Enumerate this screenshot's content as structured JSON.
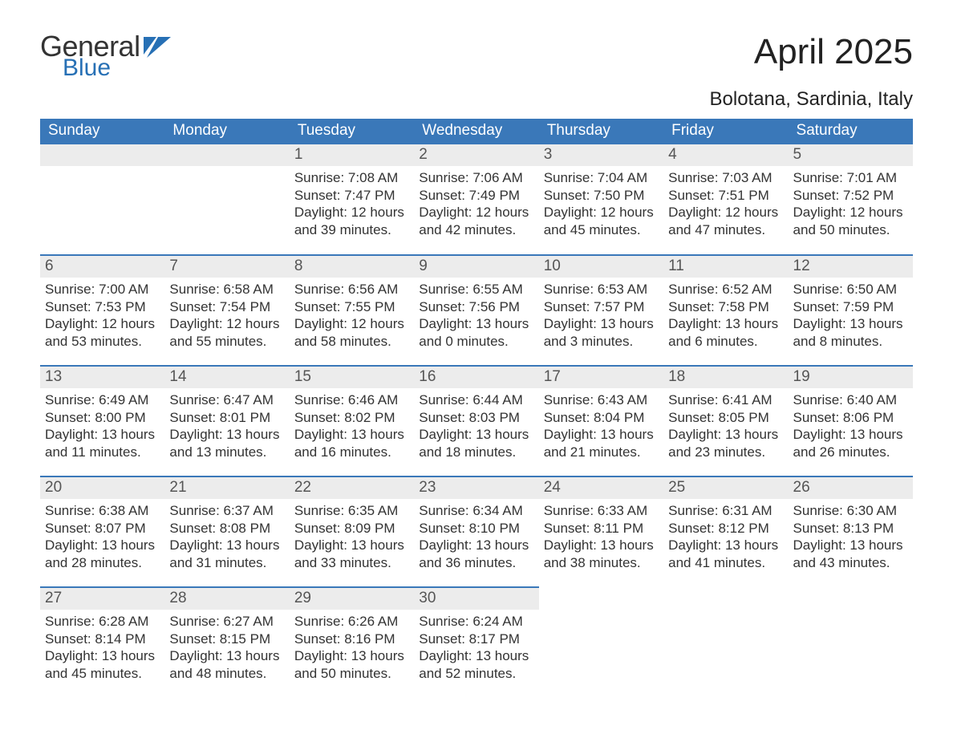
{
  "brand": {
    "word1": "General",
    "word2": "Blue"
  },
  "title": "April 2025",
  "subtitle": "Bolotana, Sardinia, Italy",
  "colors": {
    "header_bg": "#3a78b9",
    "header_text": "#ffffff",
    "daynum_bg": "#ececec",
    "rule": "#3a78b9",
    "brand_blue": "#2770b5",
    "text": "#333333"
  },
  "weekdays": [
    "Sunday",
    "Monday",
    "Tuesday",
    "Wednesday",
    "Thursday",
    "Friday",
    "Saturday"
  ],
  "weeks": [
    [
      null,
      null,
      {
        "n": "1",
        "sunrise": "Sunrise: 7:08 AM",
        "sunset": "Sunset: 7:47 PM",
        "day1": "Daylight: 12 hours",
        "day2": "and 39 minutes."
      },
      {
        "n": "2",
        "sunrise": "Sunrise: 7:06 AM",
        "sunset": "Sunset: 7:49 PM",
        "day1": "Daylight: 12 hours",
        "day2": "and 42 minutes."
      },
      {
        "n": "3",
        "sunrise": "Sunrise: 7:04 AM",
        "sunset": "Sunset: 7:50 PM",
        "day1": "Daylight: 12 hours",
        "day2": "and 45 minutes."
      },
      {
        "n": "4",
        "sunrise": "Sunrise: 7:03 AM",
        "sunset": "Sunset: 7:51 PM",
        "day1": "Daylight: 12 hours",
        "day2": "and 47 minutes."
      },
      {
        "n": "5",
        "sunrise": "Sunrise: 7:01 AM",
        "sunset": "Sunset: 7:52 PM",
        "day1": "Daylight: 12 hours",
        "day2": "and 50 minutes."
      }
    ],
    [
      {
        "n": "6",
        "sunrise": "Sunrise: 7:00 AM",
        "sunset": "Sunset: 7:53 PM",
        "day1": "Daylight: 12 hours",
        "day2": "and 53 minutes."
      },
      {
        "n": "7",
        "sunrise": "Sunrise: 6:58 AM",
        "sunset": "Sunset: 7:54 PM",
        "day1": "Daylight: 12 hours",
        "day2": "and 55 minutes."
      },
      {
        "n": "8",
        "sunrise": "Sunrise: 6:56 AM",
        "sunset": "Sunset: 7:55 PM",
        "day1": "Daylight: 12 hours",
        "day2": "and 58 minutes."
      },
      {
        "n": "9",
        "sunrise": "Sunrise: 6:55 AM",
        "sunset": "Sunset: 7:56 PM",
        "day1": "Daylight: 13 hours",
        "day2": "and 0 minutes."
      },
      {
        "n": "10",
        "sunrise": "Sunrise: 6:53 AM",
        "sunset": "Sunset: 7:57 PM",
        "day1": "Daylight: 13 hours",
        "day2": "and 3 minutes."
      },
      {
        "n": "11",
        "sunrise": "Sunrise: 6:52 AM",
        "sunset": "Sunset: 7:58 PM",
        "day1": "Daylight: 13 hours",
        "day2": "and 6 minutes."
      },
      {
        "n": "12",
        "sunrise": "Sunrise: 6:50 AM",
        "sunset": "Sunset: 7:59 PM",
        "day1": "Daylight: 13 hours",
        "day2": "and 8 minutes."
      }
    ],
    [
      {
        "n": "13",
        "sunrise": "Sunrise: 6:49 AM",
        "sunset": "Sunset: 8:00 PM",
        "day1": "Daylight: 13 hours",
        "day2": "and 11 minutes."
      },
      {
        "n": "14",
        "sunrise": "Sunrise: 6:47 AM",
        "sunset": "Sunset: 8:01 PM",
        "day1": "Daylight: 13 hours",
        "day2": "and 13 minutes."
      },
      {
        "n": "15",
        "sunrise": "Sunrise: 6:46 AM",
        "sunset": "Sunset: 8:02 PM",
        "day1": "Daylight: 13 hours",
        "day2": "and 16 minutes."
      },
      {
        "n": "16",
        "sunrise": "Sunrise: 6:44 AM",
        "sunset": "Sunset: 8:03 PM",
        "day1": "Daylight: 13 hours",
        "day2": "and 18 minutes."
      },
      {
        "n": "17",
        "sunrise": "Sunrise: 6:43 AM",
        "sunset": "Sunset: 8:04 PM",
        "day1": "Daylight: 13 hours",
        "day2": "and 21 minutes."
      },
      {
        "n": "18",
        "sunrise": "Sunrise: 6:41 AM",
        "sunset": "Sunset: 8:05 PM",
        "day1": "Daylight: 13 hours",
        "day2": "and 23 minutes."
      },
      {
        "n": "19",
        "sunrise": "Sunrise: 6:40 AM",
        "sunset": "Sunset: 8:06 PM",
        "day1": "Daylight: 13 hours",
        "day2": "and 26 minutes."
      }
    ],
    [
      {
        "n": "20",
        "sunrise": "Sunrise: 6:38 AM",
        "sunset": "Sunset: 8:07 PM",
        "day1": "Daylight: 13 hours",
        "day2": "and 28 minutes."
      },
      {
        "n": "21",
        "sunrise": "Sunrise: 6:37 AM",
        "sunset": "Sunset: 8:08 PM",
        "day1": "Daylight: 13 hours",
        "day2": "and 31 minutes."
      },
      {
        "n": "22",
        "sunrise": "Sunrise: 6:35 AM",
        "sunset": "Sunset: 8:09 PM",
        "day1": "Daylight: 13 hours",
        "day2": "and 33 minutes."
      },
      {
        "n": "23",
        "sunrise": "Sunrise: 6:34 AM",
        "sunset": "Sunset: 8:10 PM",
        "day1": "Daylight: 13 hours",
        "day2": "and 36 minutes."
      },
      {
        "n": "24",
        "sunrise": "Sunrise: 6:33 AM",
        "sunset": "Sunset: 8:11 PM",
        "day1": "Daylight: 13 hours",
        "day2": "and 38 minutes."
      },
      {
        "n": "25",
        "sunrise": "Sunrise: 6:31 AM",
        "sunset": "Sunset: 8:12 PM",
        "day1": "Daylight: 13 hours",
        "day2": "and 41 minutes."
      },
      {
        "n": "26",
        "sunrise": "Sunrise: 6:30 AM",
        "sunset": "Sunset: 8:13 PM",
        "day1": "Daylight: 13 hours",
        "day2": "and 43 minutes."
      }
    ],
    [
      {
        "n": "27",
        "sunrise": "Sunrise: 6:28 AM",
        "sunset": "Sunset: 8:14 PM",
        "day1": "Daylight: 13 hours",
        "day2": "and 45 minutes."
      },
      {
        "n": "28",
        "sunrise": "Sunrise: 6:27 AM",
        "sunset": "Sunset: 8:15 PM",
        "day1": "Daylight: 13 hours",
        "day2": "and 48 minutes."
      },
      {
        "n": "29",
        "sunrise": "Sunrise: 6:26 AM",
        "sunset": "Sunset: 8:16 PM",
        "day1": "Daylight: 13 hours",
        "day2": "and 50 minutes."
      },
      {
        "n": "30",
        "sunrise": "Sunrise: 6:24 AM",
        "sunset": "Sunset: 8:17 PM",
        "day1": "Daylight: 13 hours",
        "day2": "and 52 minutes."
      },
      null,
      null,
      null
    ]
  ]
}
